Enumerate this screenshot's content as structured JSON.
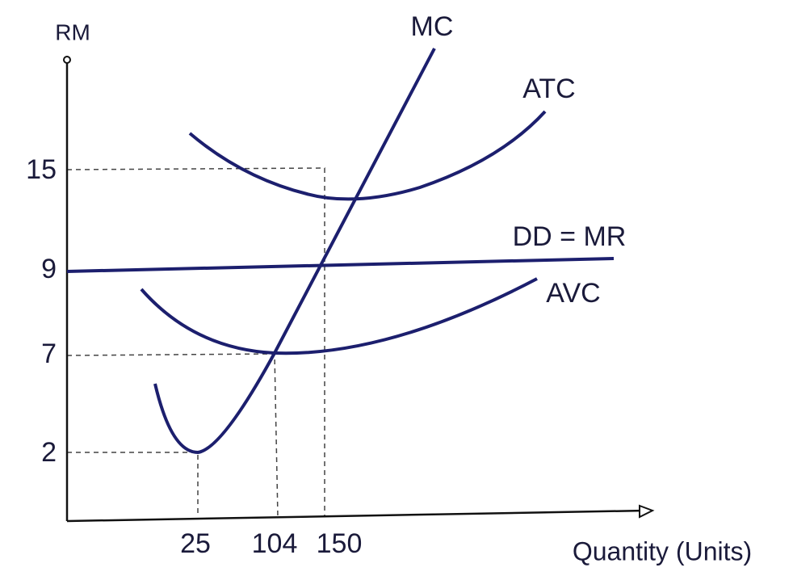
{
  "axes": {
    "y_label": "RM",
    "x_label": "Quantity (Units)",
    "y_ticks": [
      15,
      9,
      7,
      2
    ],
    "x_ticks": [
      25,
      104,
      150
    ]
  },
  "curves": {
    "mc": "MC",
    "atc": "ATC",
    "dd_mr": "DD = MR",
    "avc": "AVC"
  }
}
